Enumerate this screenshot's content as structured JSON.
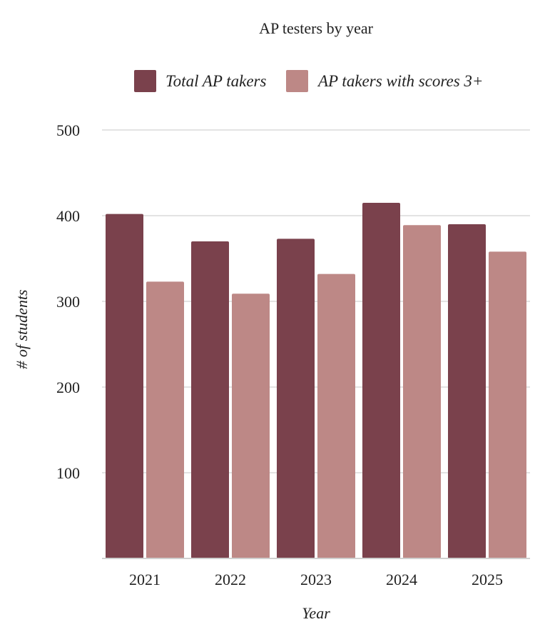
{
  "chart_data": {
    "type": "bar",
    "title": "AP testers by year",
    "xlabel": "Year",
    "ylabel": "# of students",
    "categories": [
      "2021",
      "2022",
      "2023",
      "2024",
      "2025"
    ],
    "series": [
      {
        "name": "Total AP takers",
        "values": [
          402,
          370,
          373,
          415,
          390
        ],
        "color": "#7a414c"
      },
      {
        "name": "AP takers with scores 3+",
        "values": [
          323,
          309,
          332,
          389,
          358
        ],
        "color": "#bd8886"
      }
    ],
    "ylim": [
      0,
      500
    ],
    "yticks": [
      100,
      200,
      300,
      400,
      500
    ],
    "ytick_labels": [
      "100",
      "200",
      "300",
      "400",
      "500"
    ],
    "grid": true,
    "legend_position": "top"
  }
}
